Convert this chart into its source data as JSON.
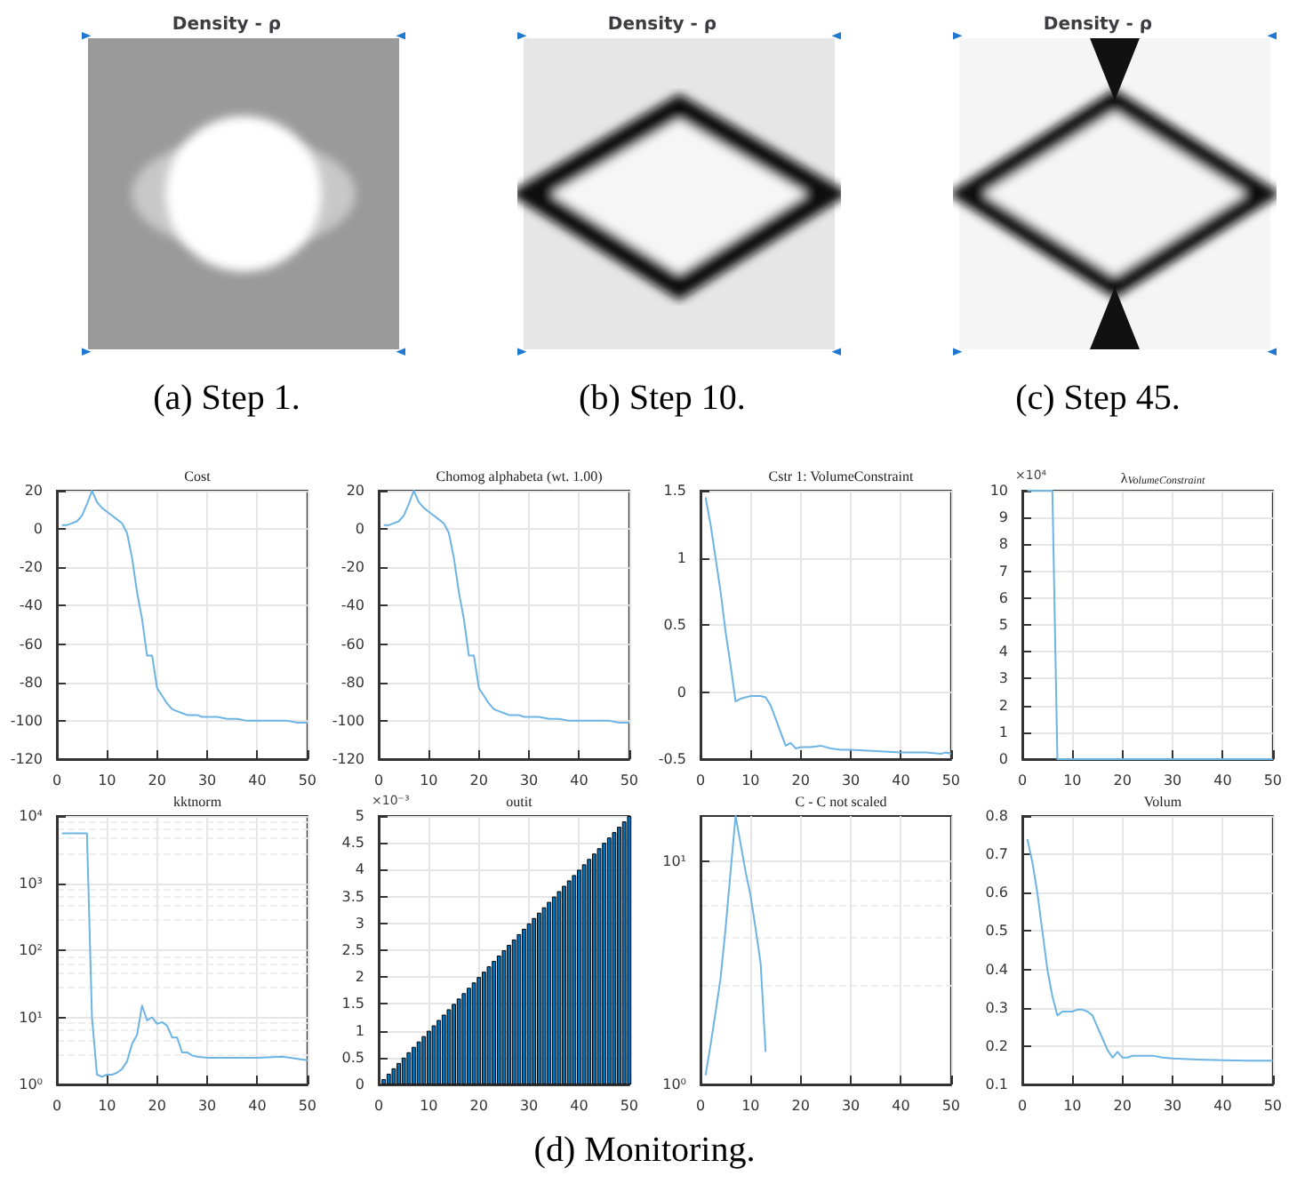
{
  "chart_data": [
    {
      "type": "other",
      "title": "Density - ρ",
      "annotations": [
        "(a) Step 1."
      ]
    },
    {
      "type": "other",
      "title": "Density - ρ",
      "annotations": [
        "(b) Step 10."
      ]
    },
    {
      "type": "other",
      "title": "Density - ρ",
      "annotations": [
        "(c) Step 45."
      ]
    },
    {
      "type": "line",
      "title": "Cost",
      "x": [
        1,
        2,
        3,
        4,
        5,
        6,
        7,
        8,
        9,
        10,
        11,
        12,
        13,
        14,
        15,
        16,
        17,
        18,
        19,
        20,
        21,
        22,
        23,
        24,
        25,
        26,
        27,
        28,
        29,
        30,
        32,
        34,
        36,
        38,
        40,
        42,
        44,
        46,
        48,
        50
      ],
      "series": [
        {
          "color": "#6cb4e4",
          "values": [
            2,
            2,
            3,
            4,
            7,
            13,
            20,
            14,
            11,
            9,
            7,
            5,
            3,
            -2,
            -15,
            -33,
            -47,
            -66,
            -66,
            -83,
            -87,
            -91,
            -94,
            -95,
            -96,
            -97,
            -97,
            -97,
            -98,
            -98,
            -98,
            -99,
            -99,
            -100,
            -100,
            -100,
            -100,
            -100,
            -101,
            -101
          ]
        }
      ],
      "xlim": [
        0,
        50
      ],
      "xticks": [
        0,
        10,
        20,
        30,
        40,
        50
      ],
      "ylim": [
        -120,
        20
      ],
      "yticks": [
        -120,
        -100,
        -80,
        -60,
        -40,
        -20,
        0,
        20
      ],
      "grid": true
    },
    {
      "type": "line",
      "title": "Chomog alphabeta (wt. 1.00)",
      "x": [
        1,
        2,
        3,
        4,
        5,
        6,
        7,
        8,
        9,
        10,
        11,
        12,
        13,
        14,
        15,
        16,
        17,
        18,
        19,
        20,
        21,
        22,
        23,
        24,
        25,
        26,
        27,
        28,
        29,
        30,
        32,
        34,
        36,
        38,
        40,
        42,
        44,
        46,
        48,
        50
      ],
      "series": [
        {
          "color": "#6cb4e4",
          "values": [
            2,
            2,
            3,
            4,
            7,
            13,
            20,
            14,
            11,
            9,
            7,
            5,
            3,
            -2,
            -15,
            -33,
            -47,
            -66,
            -66,
            -83,
            -87,
            -91,
            -94,
            -95,
            -96,
            -97,
            -97,
            -97,
            -98,
            -98,
            -98,
            -99,
            -99,
            -100,
            -100,
            -100,
            -100,
            -100,
            -101,
            -101
          ]
        }
      ],
      "xlim": [
        0,
        50
      ],
      "xticks": [
        0,
        10,
        20,
        30,
        40,
        50
      ],
      "ylim": [
        -120,
        20
      ],
      "yticks": [
        -120,
        -100,
        -80,
        -60,
        -40,
        -20,
        0,
        20
      ],
      "grid": true
    },
    {
      "type": "line",
      "title": "Cstr 1: VolumeConstraint",
      "x": [
        1,
        2,
        3,
        4,
        5,
        6,
        7,
        8,
        9,
        10,
        11,
        12,
        13,
        14,
        15,
        16,
        17,
        18,
        19,
        20,
        22,
        24,
        26,
        28,
        30,
        35,
        40,
        45,
        48,
        49,
        50
      ],
      "series": [
        {
          "color": "#6cb4e4",
          "values": [
            1.45,
            1.25,
            1.0,
            0.75,
            0.45,
            0.2,
            -0.07,
            -0.05,
            -0.04,
            -0.03,
            -0.03,
            -0.03,
            -0.04,
            -0.1,
            -0.2,
            -0.3,
            -0.4,
            -0.38,
            -0.42,
            -0.41,
            -0.41,
            -0.4,
            -0.42,
            -0.43,
            -0.43,
            -0.44,
            -0.45,
            -0.45,
            -0.46,
            -0.45,
            -0.46
          ]
        }
      ],
      "xlim": [
        0,
        50
      ],
      "xticks": [
        0,
        10,
        20,
        30,
        40,
        50
      ],
      "ylim": [
        -0.5,
        1.5
      ],
      "yticks": [
        -0.5,
        0,
        0.5,
        1,
        1.5
      ],
      "grid": true
    },
    {
      "type": "line",
      "title": "λ$_{VolumeConstraint}$",
      "annotations": [
        "×10⁴"
      ],
      "x": [
        1,
        2,
        3,
        4,
        5,
        6,
        7,
        8,
        10,
        20,
        30,
        40,
        50
      ],
      "series": [
        {
          "color": "#6cb4e4",
          "values": [
            10,
            10,
            10,
            10,
            10,
            10,
            0,
            0,
            0,
            0,
            0,
            0,
            0
          ]
        }
      ],
      "xlim": [
        0,
        50
      ],
      "xticks": [
        0,
        10,
        20,
        30,
        40,
        50
      ],
      "ylim": [
        0,
        10
      ],
      "yticks": [
        0,
        1,
        2,
        3,
        4,
        5,
        6,
        7,
        8,
        9,
        10
      ],
      "grid": true
    },
    {
      "type": "line",
      "title": "kktnorm",
      "log": "y",
      "x": [
        1,
        2,
        3,
        4,
        5,
        6,
        7,
        8,
        9,
        10,
        11,
        12,
        13,
        14,
        15,
        16,
        17,
        18,
        19,
        20,
        21,
        22,
        23,
        24,
        25,
        26,
        27,
        28,
        30,
        35,
        40,
        45,
        50
      ],
      "series": [
        {
          "color": "#6cb4e4",
          "values": [
            5500,
            5500,
            5500,
            5500,
            5500,
            5500,
            10,
            1.4,
            1.3,
            1.4,
            1.4,
            1.5,
            1.7,
            2.2,
            4,
            5.5,
            15,
            9,
            10,
            8,
            8.5,
            7.5,
            5,
            5,
            3,
            3,
            2.7,
            2.6,
            2.5,
            2.5,
            2.5,
            2.6,
            2.3
          ]
        }
      ],
      "xlim": [
        0,
        50
      ],
      "xticks": [
        0,
        10,
        20,
        30,
        40,
        50
      ],
      "ylim": [
        1,
        10000
      ],
      "yticks": [
        {
          "value": 1,
          "label": "10⁰"
        },
        {
          "value": 10,
          "label": "10¹"
        },
        {
          "value": 100,
          "label": "10²"
        },
        {
          "value": 1000,
          "label": "10³"
        },
        {
          "value": 10000,
          "label": "10⁴"
        }
      ],
      "grid": true
    },
    {
      "type": "bar",
      "title": "outit",
      "annotations": [
        "×10⁻³"
      ],
      "x": [
        1,
        2,
        3,
        4,
        5,
        6,
        7,
        8,
        9,
        10,
        11,
        12,
        13,
        14,
        15,
        16,
        17,
        18,
        19,
        20,
        21,
        22,
        23,
        24,
        25,
        26,
        27,
        28,
        29,
        30,
        31,
        32,
        33,
        34,
        35,
        36,
        37,
        38,
        39,
        40,
        41,
        42,
        43,
        44,
        45,
        46,
        47,
        48,
        49,
        50
      ],
      "series": [
        {
          "color": "#0072bd",
          "values": [
            0.1,
            0.2,
            0.3,
            0.4,
            0.5,
            0.6,
            0.7,
            0.8,
            0.9,
            1,
            1.1,
            1.2,
            1.3,
            1.4,
            1.5,
            1.6,
            1.7,
            1.8,
            1.9,
            2,
            2.1,
            2.2,
            2.3,
            2.4,
            2.5,
            2.6,
            2.7,
            2.8,
            2.9,
            3,
            3.1,
            3.2,
            3.3,
            3.4,
            3.5,
            3.6,
            3.7,
            3.8,
            3.9,
            4,
            4.1,
            4.2,
            4.3,
            4.4,
            4.5,
            4.6,
            4.7,
            4.8,
            4.9,
            5
          ]
        }
      ],
      "xlim": [
        0,
        50
      ],
      "xticks": [
        0,
        10,
        20,
        30,
        40,
        50
      ],
      "ylim": [
        0,
        5
      ],
      "yticks": [
        0,
        0.5,
        1,
        1.5,
        2,
        2.5,
        3,
        3.5,
        4,
        4.5,
        5
      ],
      "grid": true
    },
    {
      "type": "line",
      "title": "C - C not scaled",
      "log": "y",
      "x": [
        1,
        2,
        3,
        4,
        5,
        6,
        7,
        8,
        9,
        10,
        11,
        12,
        13
      ],
      "series": [
        {
          "color": "#6cb4e4",
          "values": [
            1.1,
            1.5,
            2.1,
            3,
            5,
            9,
            16,
            12,
            9,
            7,
            5,
            3.5,
            1.4
          ]
        }
      ],
      "xlim": [
        0,
        50
      ],
      "xticks": [
        0,
        10,
        20,
        30,
        40,
        50
      ],
      "ylim": [
        1,
        16
      ],
      "yticks": [
        {
          "value": 1,
          "label": "10⁰"
        },
        {
          "value": 10,
          "label": "10¹"
        }
      ],
      "grid": true
    },
    {
      "type": "line",
      "title": "Volum",
      "x": [
        1,
        2,
        3,
        4,
        5,
        6,
        7,
        8,
        9,
        10,
        11,
        12,
        13,
        14,
        15,
        16,
        17,
        18,
        19,
        20,
        21,
        22,
        24,
        26,
        28,
        30,
        35,
        40,
        45,
        50
      ],
      "series": [
        {
          "color": "#6cb4e4",
          "values": [
            0.74,
            0.68,
            0.6,
            0.5,
            0.4,
            0.33,
            0.28,
            0.29,
            0.29,
            0.29,
            0.295,
            0.295,
            0.29,
            0.28,
            0.25,
            0.22,
            0.19,
            0.17,
            0.185,
            0.17,
            0.17,
            0.175,
            0.175,
            0.175,
            0.17,
            0.168,
            0.165,
            0.163,
            0.162,
            0.162
          ]
        }
      ],
      "xlim": [
        0,
        50
      ],
      "xticks": [
        0,
        10,
        20,
        30,
        40,
        50
      ],
      "ylim": [
        0.1,
        0.8
      ],
      "yticks": [
        0.1,
        0.2,
        0.3,
        0.4,
        0.5,
        0.6,
        0.7,
        0.8
      ],
      "grid": true
    },
    {
      "type": "other",
      "annotations": [
        "(d) Monitoring."
      ]
    }
  ]
}
